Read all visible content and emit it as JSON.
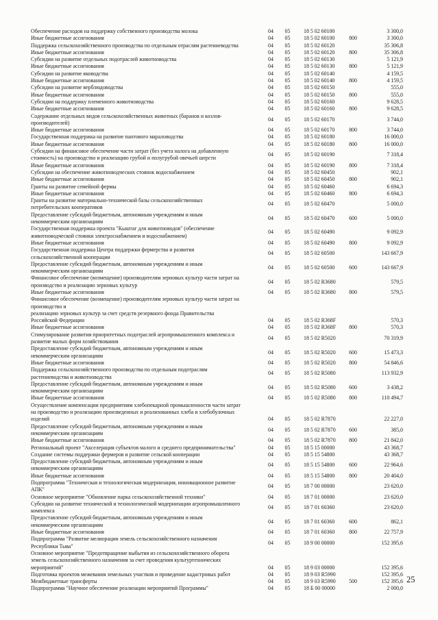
{
  "page": {
    "number": "25"
  },
  "table": {
    "rows": [
      {
        "name": "Обеспечение расходов на поддержку собственного производства молока",
        "rz": "04",
        "pr": "05",
        "csr": "18 5 02 60100",
        "vr": "",
        "amount": "3 300,0"
      },
      {
        "name": "Иные бюджетные ассигнования",
        "rz": "04",
        "pr": "05",
        "csr": "18 5 02 60100",
        "vr": "800",
        "amount": "3 300,0"
      },
      {
        "name": "Поддержка сельскохозяйственного производства по отдельным отраслям растениеводства",
        "rz": "04",
        "pr": "05",
        "csr": "18 5 02 60120",
        "vr": "",
        "amount": "35 306,8"
      },
      {
        "name": "Иные бюджетные ассигнования",
        "rz": "04",
        "pr": "05",
        "csr": "18 5 02 60120",
        "vr": "800",
        "amount": "35 306,8"
      },
      {
        "name": "Субсидии на развитие отдельных подотраслей животноводства",
        "rz": "04",
        "pr": "05",
        "csr": "18 5 02 60130",
        "vr": "",
        "amount": "5 121,9"
      },
      {
        "name": "Иные бюджетные ассигнования",
        "rz": "04",
        "pr": "05",
        "csr": "18 5 02 60130",
        "vr": "800",
        "amount": "5 121,9"
      },
      {
        "name": "Субсидии на развитие яководства",
        "rz": "04",
        "pr": "05",
        "csr": "18 5 02 60140",
        "vr": "",
        "amount": "4 159,5"
      },
      {
        "name": "Иные бюджетные ассигнования",
        "rz": "04",
        "pr": "05",
        "csr": "18 5 02 60140",
        "vr": "800",
        "amount": "4 159,5"
      },
      {
        "name": "Субсидии на развитие верблюдоводства",
        "rz": "04",
        "pr": "05",
        "csr": "18 5 02 60150",
        "vr": "",
        "amount": "555,0"
      },
      {
        "name": "Иные бюджетные ассигнования",
        "rz": "04",
        "pr": "05",
        "csr": "18 5 02 60150",
        "vr": "800",
        "amount": "555,0"
      },
      {
        "name": "Субсидии на поддержку племенного животноводства",
        "rz": "04",
        "pr": "05",
        "csr": "18 5 02 60160",
        "vr": "",
        "amount": "9 628,5"
      },
      {
        "name": "Иные бюджетные ассигнования",
        "rz": "04",
        "pr": "05",
        "csr": "18 5 02 60160",
        "vr": "800",
        "amount": "9 628,5"
      },
      {
        "name": "Содержание отдельных видов сельскохозяйственных животных (баранов и козлов-\nпроизводителей)",
        "rz": "04",
        "pr": "05",
        "csr": "18 5 02 60170",
        "vr": "",
        "amount": "3 744,0"
      },
      {
        "name": "Иные бюджетные ассигнования",
        "rz": "04",
        "pr": "05",
        "csr": "18 5 02 60170",
        "vr": "800",
        "amount": "3 744,0"
      },
      {
        "name": "Государственная поддержка на развитие пантового мараловодства",
        "rz": "04",
        "pr": "05",
        "csr": "18 5 02 60180",
        "vr": "",
        "amount": "16 000,0"
      },
      {
        "name": "Иные бюджетные ассигнования",
        "rz": "04",
        "pr": "05",
        "csr": "18 5 02 60180",
        "vr": "800",
        "amount": "16 000,0"
      },
      {
        "name": "Субсидии на финансовое обеспечение части затрат (без учета налога на добавленную\nстоимость) на производство и реализацию грубой и полугрубой овечьей шерсти",
        "rz": "04",
        "pr": "05",
        "csr": "18 5 02 60190",
        "vr": "",
        "amount": "7 318,4"
      },
      {
        "name": "Иные бюджетные ассигнования",
        "rz": "04",
        "pr": "05",
        "csr": "18 5 02 60190",
        "vr": "800",
        "amount": "7 318,4"
      },
      {
        "name": "Субсидии на обеспечение животноводческих стоянок водоснабжением",
        "rz": "04",
        "pr": "05",
        "csr": "18 5 02 60450",
        "vr": "",
        "amount": "902,1"
      },
      {
        "name": "Иные бюджетные ассигнования",
        "rz": "04",
        "pr": "05",
        "csr": "18 5 02 60450",
        "vr": "800",
        "amount": "902,1"
      },
      {
        "name": "Гранты на развитие семейной фермы",
        "rz": "04",
        "pr": "05",
        "csr": "18 5 02 60460",
        "vr": "",
        "amount": "6 694,3"
      },
      {
        "name": "Иные бюджетные ассигнования",
        "rz": "04",
        "pr": "05",
        "csr": "18 5 02 60460",
        "vr": "800",
        "amount": "6 694,3"
      },
      {
        "name": "Гранты на развитие материально-технической базы сельскохозяйственных\nпотребительских кооперативов",
        "rz": "04",
        "pr": "05",
        "csr": "18 5 02 60470",
        "vr": "",
        "amount": "5 000,0"
      },
      {
        "name": "Предоставление субсидий бюджетным, автономным учреждениям и иным\nнекоммерческим организациям",
        "rz": "04",
        "pr": "05",
        "csr": "18 5 02 60470",
        "vr": "600",
        "amount": "5 000,0"
      },
      {
        "name": "Государственная поддержка проекта \"Кыштаг для животноводов\" (обеспечение\nживотноводческой стоянки электроснабжением и водоснабжением)",
        "rz": "04",
        "pr": "05",
        "csr": "18 5 02 60490",
        "vr": "",
        "amount": "9 092,9"
      },
      {
        "name": "Иные бюджетные ассигнования",
        "rz": "04",
        "pr": "05",
        "csr": "18 5 02 60490",
        "vr": "800",
        "amount": "9 092,9"
      },
      {
        "name": "Государственная поддержка Центра поддержки фермерства и развития\nсельскохозяйственной кооперации",
        "rz": "04",
        "pr": "05",
        "csr": "18 5 02 60500",
        "vr": "",
        "amount": "143 667,9"
      },
      {
        "name": "Предоставление субсидий бюджетным, автономным учреждениям и иным\nнекоммерческим организациям",
        "rz": "04",
        "pr": "05",
        "csr": "18 5 02 60500",
        "vr": "600",
        "amount": "143 667,9"
      },
      {
        "name": "Финансовое обеспечение (возмещение) производителям зерновых культур части затрат на\nпроизводство и реализацию зерновых культур",
        "rz": "04",
        "pr": "05",
        "csr": "18 5 02 R3680",
        "vr": "",
        "amount": "579,5"
      },
      {
        "name": "Иные бюджетные ассигнования",
        "rz": "04",
        "pr": "05",
        "csr": "18 5 02 R3680",
        "vr": "800",
        "amount": "579,5"
      },
      {
        "name": "Финансовое обеспечение (возмещение) производителям зерновых культур части затрат на\nпроизводство и\nреализацию зерновых культур за счет средств резервного фонда Правительства\nРоссийской Федерации",
        "rz": "04",
        "pr": "05",
        "csr": "18 5 02 R368F",
        "vr": "",
        "amount": "570,3"
      },
      {
        "name": "Иные бюджетные ассигнования",
        "rz": "04",
        "pr": "05",
        "csr": "18 5 02 R368F",
        "vr": "800",
        "amount": "570,3"
      },
      {
        "name": "Стимулирование развития приоритетных подотраслей агропромышленного комплекса и\nразвитие малых форм хозяйствования",
        "rz": "04",
        "pr": "05",
        "csr": "18 5 02 R5020",
        "vr": "",
        "amount": "70 319,9"
      },
      {
        "name": "Предоставление субсидий бюджетным, автономным учреждениям и иным\nнекоммерческим организациям",
        "rz": "04",
        "pr": "05",
        "csr": "18 5 02 R5020",
        "vr": "600",
        "amount": "15 473,3"
      },
      {
        "name": "Иные бюджетные ассигнования",
        "rz": "04",
        "pr": "05",
        "csr": "18 5 02 R5020",
        "vr": "800",
        "amount": "54 846,6"
      },
      {
        "name": "Поддержка сельскохозяйственного производства по отдельным подотраслям\nрастениеводства и животноводства",
        "rz": "04",
        "pr": "05",
        "csr": "18 5 02 R5080",
        "vr": "",
        "amount": "113 932,9"
      },
      {
        "name": "Предоставление субсидий бюджетным, автономным учреждениям и иным\nнекоммерческим организациям",
        "rz": "04",
        "pr": "05",
        "csr": "18 5 02 R5080",
        "vr": "600",
        "amount": "3 438,2"
      },
      {
        "name": "Иные бюджетные ассигнования",
        "rz": "04",
        "pr": "05",
        "csr": "18 5 02 R5080",
        "vr": "800",
        "amount": "110 494,7"
      },
      {
        "name": "Осуществление компенсации предприятиям хлебопекарной промышленности части затрат\nна производство и реализацию произведенных и реализованных хлеба и хлебобулочных\nизделий",
        "rz": "04",
        "pr": "05",
        "csr": "18 5 02 R7870",
        "vr": "",
        "amount": "22 227,0"
      },
      {
        "name": "Предоставление субсидий бюджетным, автономным учреждениям и иным\nнекоммерческим организациям",
        "rz": "04",
        "pr": "05",
        "csr": "18 5 02 R7870",
        "vr": "600",
        "amount": "385,0"
      },
      {
        "name": "Иные бюджетные ассигнования",
        "rz": "04",
        "pr": "05",
        "csr": "18 5 02 R7870",
        "vr": "800",
        "amount": "21 842,0"
      },
      {
        "name": "Региональный проект \"Акселерация субъектов малого и среднего предпринимательства\"",
        "rz": "04",
        "pr": "05",
        "csr": "18 5 15 00000",
        "vr": "",
        "amount": "43 368,7"
      },
      {
        "name": "Создание системы поддержки фермеров и развитие сельской кооперации",
        "rz": "04",
        "pr": "05",
        "csr": "18 5 15 54800",
        "vr": "",
        "amount": "43 368,7"
      },
      {
        "name": "Предоставление субсидий бюджетным, автономным учреждениям и иным\nнекоммерческим организациям",
        "rz": "04",
        "pr": "05",
        "csr": "18 5 15 54800",
        "vr": "600",
        "amount": "22 964,6"
      },
      {
        "name": "Иные бюджетные ассигнования",
        "rz": "04",
        "pr": "05",
        "csr": "18 5 15 54800",
        "vr": "800",
        "amount": "20 404,0"
      },
      {
        "name": "Подпрограмма \"Техническая и технологическая модернизация, инновационное развитие\nАПК\"",
        "rz": "04",
        "pr": "05",
        "csr": "18 7 00 00000",
        "vr": "",
        "amount": "23 620,0"
      },
      {
        "name": "Основное мероприятие \"Обновление парка сельскохозяйственной техники\"",
        "rz": "04",
        "pr": "05",
        "csr": "18 7 01 00000",
        "vr": "",
        "amount": "23 620,0"
      },
      {
        "name": "Субсидии на развитие технической и технологической модернизации агропромышленного\nкомплекса",
        "rz": "04",
        "pr": "05",
        "csr": "18 7 01 60360",
        "vr": "",
        "amount": "23 620,0"
      },
      {
        "name": "Предоставление субсидий бюджетным, автономным учреждениям и иным\nнекоммерческим организациям",
        "rz": "04",
        "pr": "05",
        "csr": "18 7 01 60360",
        "vr": "600",
        "amount": "862,1"
      },
      {
        "name": "Иные бюджетные ассигнования",
        "rz": "04",
        "pr": "05",
        "csr": "18 7 01 60360",
        "vr": "800",
        "amount": "22 757,9"
      },
      {
        "name": "Подпрограмма \"Развитие мелиорации земель сельскохозяйственного назначения\nРеспублики Тыва\"",
        "rz": "04",
        "pr": "05",
        "csr": "18 9 00 00000",
        "vr": "",
        "amount": "152 395,6"
      },
      {
        "name": "Основное мероприятие \"Предотвращение выбытия из сельскохозяйственного оборота\nземель сельскохозяйственного назначения за счет проведения культуртехнических\nмероприятий\"",
        "rz": "04",
        "pr": "05",
        "csr": "18 9 03 00000",
        "vr": "",
        "amount": "152 395,6"
      },
      {
        "name": "Подготовка проектов межевания земельных участков и проведение кадастровых работ",
        "rz": "04",
        "pr": "05",
        "csr": "18 9 03 R5990",
        "vr": "",
        "amount": "152 395,6"
      },
      {
        "name": "Межбюджетные трансферты",
        "rz": "04",
        "pr": "05",
        "csr": "18 9 03 R5990",
        "vr": "500",
        "amount": "152 395,6"
      },
      {
        "name": "Подпрограмма \"Научное обеспечение реализации мероприятий Программы\"",
        "rz": "04",
        "pr": "05",
        "csr": "18 Б 00 00000",
        "vr": "",
        "amount": "2 000,0"
      }
    ]
  }
}
